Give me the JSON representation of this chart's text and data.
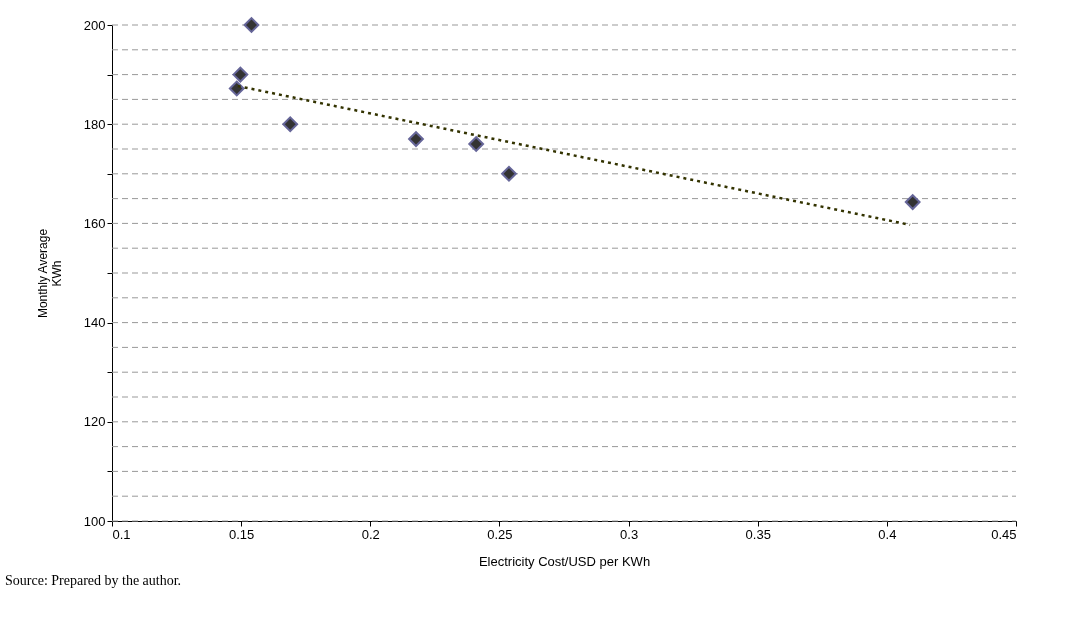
{
  "chart_data": {
    "type": "scatter",
    "xlabel": "Electricity Cost/USD per KWh",
    "ylabel": "Monthly Average\nKWh",
    "annotations": [
      "Source: Prepared by the author."
    ],
    "series": [
      {
        "marker": "diamond",
        "color": "#333333",
        "x": [
          0.154,
          0.1497,
          0.1483,
          0.169,
          0.2177,
          0.241,
          0.2537,
          0.41
        ],
        "values": [
          200,
          190,
          187.2,
          180,
          177,
          176,
          170,
          164.3
        ]
      },
      {
        "type": "line",
        "color": "#333300",
        "line_style": "dotted",
        "marker": "none",
        "x": [
          0.1487,
          0.409
        ],
        "values": [
          187.7,
          159.7
        ]
      }
    ],
    "xlim": [
      0.1,
      0.45
    ],
    "xticks": [
      0.1,
      0.15,
      0.2,
      0.25,
      0.3,
      0.35,
      0.4,
      0.45
    ],
    "ylim": [
      100,
      200
    ],
    "yticks": [
      100,
      {
        "value": 105,
        "label": null
      },
      {
        "value": 110,
        "label": null
      },
      {
        "value": 115,
        "label": null
      },
      120,
      {
        "value": 125,
        "label": null
      },
      {
        "value": 130,
        "label": null
      },
      {
        "value": 135,
        "label": null
      },
      140,
      {
        "value": 145,
        "label": null
      },
      {
        "value": 150,
        "label": null
      },
      {
        "value": 155,
        "label": null
      },
      160,
      {
        "value": 165,
        "label": null
      },
      {
        "value": 170,
        "label": null
      },
      {
        "value": 175,
        "label": null
      },
      180,
      {
        "value": 185,
        "label": null
      },
      {
        "value": 190,
        "label": null
      },
      {
        "value": 195,
        "label": null
      },
      200
    ],
    "grid": "y"
  }
}
